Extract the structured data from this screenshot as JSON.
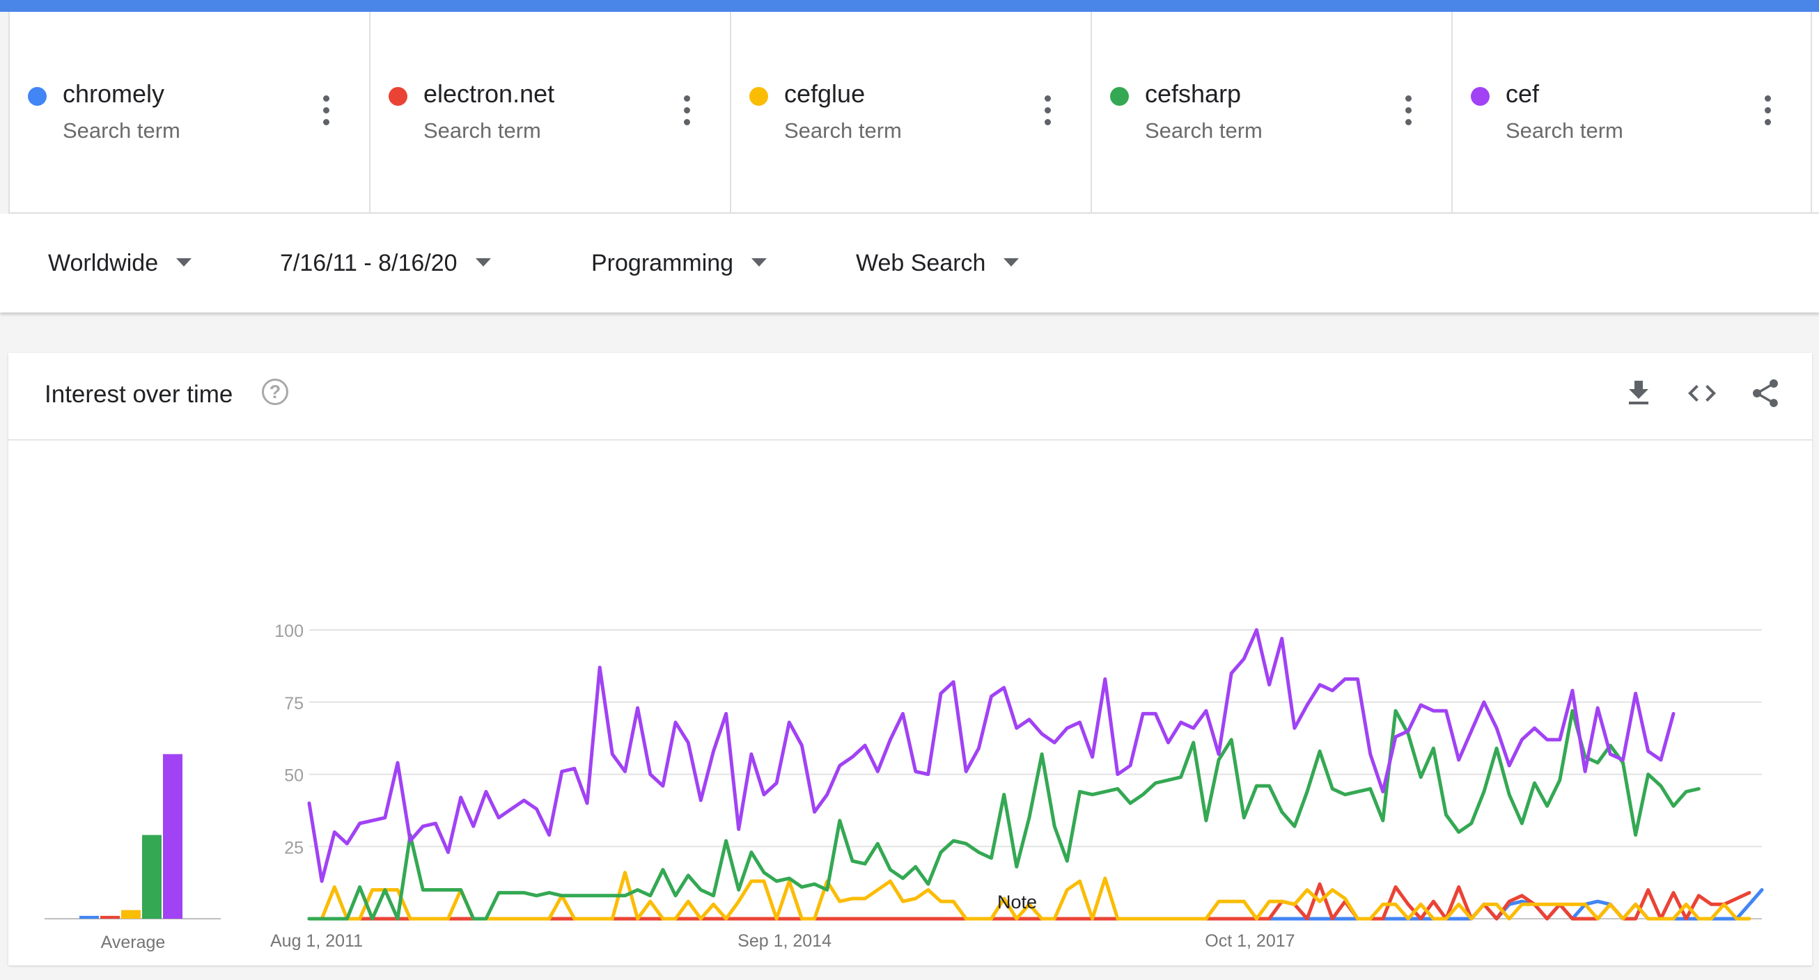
{
  "terms": [
    {
      "name": "chromely",
      "subtitle": "Search term",
      "color": "#4285f4"
    },
    {
      "name": "electron.net",
      "subtitle": "Search term",
      "color": "#ea4335"
    },
    {
      "name": "cefglue",
      "subtitle": "Search term",
      "color": "#fbbc04"
    },
    {
      "name": "cefsharp",
      "subtitle": "Search term",
      "color": "#34a853"
    },
    {
      "name": "cef",
      "subtitle": "Search term",
      "color": "#a142f4"
    }
  ],
  "filters": {
    "region": "Worldwide",
    "date_range": "7/16/11 - 8/16/20",
    "category": "Programming",
    "search_type": "Web Search"
  },
  "card": {
    "title": "Interest over time",
    "help_icon": "help-circle-icon",
    "actions": [
      "download-icon",
      "embed-code-icon",
      "share-icon"
    ]
  },
  "chart_data": {
    "type": "line",
    "average_label": "Average",
    "note_label": "Note",
    "y_ticks": [
      "100",
      "75",
      "50",
      "25"
    ],
    "ylim": [
      0,
      100
    ],
    "grid": true,
    "x_tick_labels": [
      {
        "label": "Aug 1, 2011",
        "index": 0
      },
      {
        "label": "Sep 1, 2014",
        "index": 37
      },
      {
        "label": "Oct 1, 2017",
        "index": 74
      }
    ],
    "averages": [
      {
        "name": "chromely",
        "color": "#4285f4",
        "value": 1
      },
      {
        "name": "electron.net",
        "color": "#ea4335",
        "value": 1
      },
      {
        "name": "cefglue",
        "color": "#fbbc04",
        "value": 3
      },
      {
        "name": "cefsharp",
        "color": "#34a853",
        "value": 29
      },
      {
        "name": "cef",
        "color": "#a142f4",
        "value": 57
      }
    ],
    "series": [
      {
        "name": "chromely",
        "color": "#4285f4",
        "values": [
          0,
          0,
          0,
          0,
          0,
          0,
          0,
          0,
          0,
          0,
          0,
          0,
          0,
          0,
          0,
          0,
          0,
          0,
          0,
          0,
          0,
          0,
          0,
          0,
          0,
          0,
          0,
          0,
          0,
          0,
          0,
          0,
          0,
          0,
          0,
          0,
          0,
          0,
          0,
          0,
          0,
          0,
          0,
          0,
          0,
          0,
          0,
          0,
          0,
          0,
          0,
          0,
          0,
          0,
          0,
          0,
          0,
          0,
          0,
          0,
          0,
          0,
          0,
          0,
          0,
          0,
          0,
          0,
          0,
          0,
          0,
          0,
          0,
          0,
          0,
          0,
          0,
          0,
          0,
          0,
          0,
          0,
          0,
          0,
          0,
          0,
          0,
          0,
          0,
          0,
          0,
          0,
          0,
          5,
          0,
          5,
          6,
          5,
          0,
          5,
          0,
          5,
          6,
          5,
          0,
          5,
          0,
          0,
          0,
          0,
          0,
          0,
          0,
          0,
          5,
          10
        ]
      },
      {
        "name": "electron.net",
        "color": "#ea4335",
        "values": [
          0,
          0,
          0,
          0,
          0,
          0,
          0,
          0,
          0,
          0,
          0,
          0,
          0,
          0,
          0,
          0,
          0,
          0,
          0,
          0,
          0,
          0,
          0,
          0,
          0,
          0,
          0,
          0,
          0,
          0,
          0,
          0,
          0,
          0,
          0,
          0,
          0,
          0,
          0,
          0,
          0,
          0,
          0,
          0,
          0,
          0,
          0,
          0,
          0,
          0,
          0,
          0,
          0,
          0,
          0,
          0,
          0,
          0,
          0,
          0,
          0,
          0,
          0,
          0,
          0,
          0,
          0,
          0,
          0,
          0,
          0,
          0,
          0,
          0,
          0,
          0,
          0,
          6,
          5,
          0,
          12,
          0,
          6,
          0,
          0,
          0,
          11,
          5,
          0,
          6,
          0,
          11,
          0,
          5,
          0,
          6,
          8,
          5,
          0,
          5,
          0,
          0,
          0,
          5,
          0,
          0,
          10,
          0,
          9,
          0,
          8,
          5,
          5,
          7,
          9
        ]
      },
      {
        "name": "cefglue",
        "color": "#fbbc04",
        "values": [
          0,
          0,
          11,
          0,
          0,
          10,
          10,
          10,
          0,
          0,
          0,
          0,
          10,
          0,
          0,
          0,
          0,
          0,
          0,
          0,
          8,
          0,
          0,
          0,
          0,
          16,
          0,
          6,
          0,
          0,
          6,
          0,
          5,
          0,
          6,
          13,
          13,
          0,
          13,
          0,
          0,
          13,
          6,
          7,
          7,
          10,
          13,
          6,
          7,
          10,
          6,
          6,
          0,
          0,
          0,
          7,
          0,
          5,
          0,
          0,
          10,
          13,
          0,
          14,
          0,
          0,
          0,
          0,
          0,
          0,
          0,
          0,
          6,
          6,
          6,
          0,
          6,
          6,
          5,
          10,
          6,
          10,
          7,
          0,
          0,
          5,
          5,
          0,
          5,
          0,
          0,
          5,
          0,
          5,
          5,
          0,
          5,
          5,
          5,
          5,
          5,
          5,
          0,
          5,
          0,
          5,
          0,
          0,
          0,
          5,
          0,
          0,
          5,
          0,
          0
        ]
      },
      {
        "name": "cefsharp",
        "color": "#34a853",
        "values": [
          0,
          0,
          0,
          0,
          11,
          0,
          10,
          0,
          29,
          10,
          10,
          10,
          10,
          0,
          0,
          9,
          9,
          9,
          8,
          9,
          8,
          8,
          8,
          8,
          8,
          8,
          10,
          8,
          17,
          8,
          15,
          10,
          8,
          27,
          10,
          23,
          16,
          13,
          14,
          11,
          12,
          10,
          34,
          20,
          19,
          26,
          17,
          14,
          18,
          12,
          23,
          27,
          26,
          23,
          21,
          43,
          18,
          35,
          57,
          32,
          20,
          44,
          43,
          44,
          45,
          40,
          43,
          47,
          48,
          49,
          61,
          34,
          55,
          62,
          35,
          46,
          46,
          37,
          32,
          44,
          58,
          45,
          43,
          44,
          45,
          34,
          72,
          64,
          49,
          59,
          36,
          30,
          33,
          44,
          59,
          43,
          33,
          47,
          39,
          48,
          72,
          56,
          54,
          60,
          54,
          29,
          50,
          46,
          39,
          44,
          45
        ]
      },
      {
        "name": "cef",
        "color": "#a142f4",
        "values": [
          40,
          13,
          30,
          26,
          33,
          34,
          35,
          54,
          27,
          32,
          33,
          23,
          42,
          32,
          44,
          35,
          38,
          41,
          38,
          29,
          51,
          52,
          40,
          87,
          57,
          51,
          73,
          50,
          46,
          68,
          61,
          41,
          58,
          71,
          31,
          57,
          43,
          47,
          68,
          60,
          37,
          43,
          53,
          56,
          60,
          51,
          62,
          71,
          51,
          50,
          78,
          82,
          51,
          59,
          77,
          80,
          66,
          69,
          64,
          61,
          66,
          68,
          56,
          83,
          50,
          53,
          71,
          71,
          61,
          68,
          66,
          72,
          57,
          85,
          90,
          100,
          81,
          97,
          66,
          74,
          81,
          79,
          83,
          83,
          57,
          44,
          63,
          65,
          74,
          72,
          72,
          55,
          65,
          75,
          66,
          53,
          62,
          66,
          62,
          62,
          79,
          51,
          73,
          57,
          55,
          78,
          58,
          55,
          71
        ]
      }
    ]
  }
}
